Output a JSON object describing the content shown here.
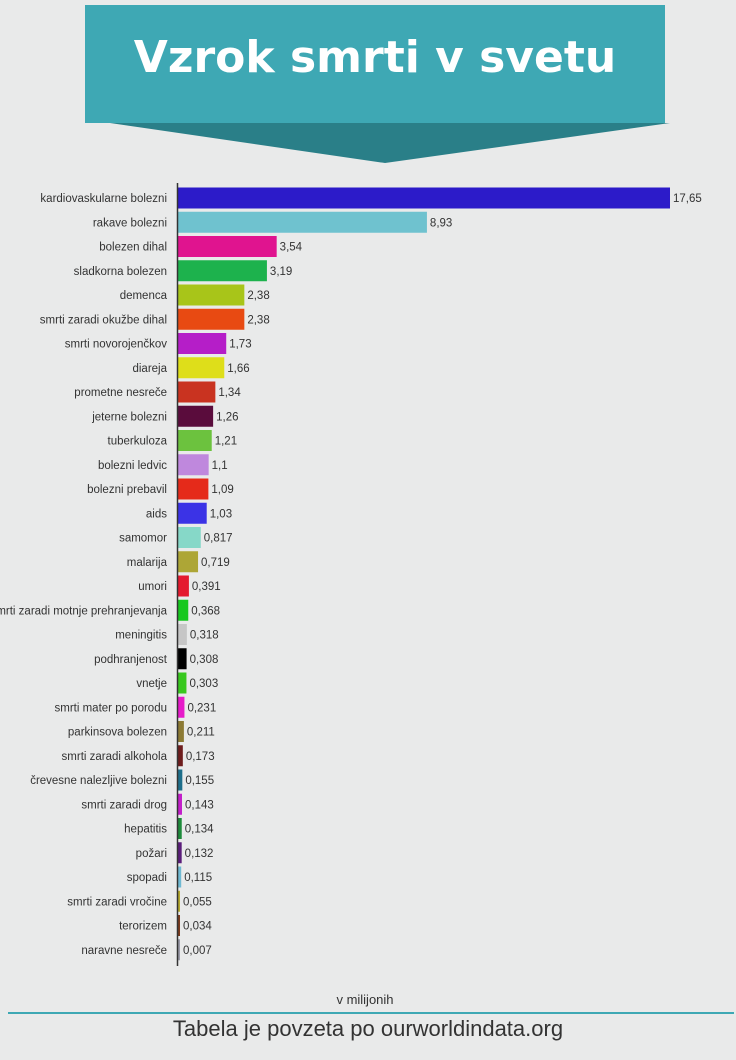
{
  "title": "Vzrok smrti v svetu",
  "unit_label": "v milijonih",
  "source": "Tabela je povzeta po ourworldindata.org",
  "colors": {
    "background": "#e9eaea",
    "banner": "#3ea8b4",
    "banner_shadow": "#2a7f88",
    "axis": "#333333"
  },
  "chart_data": {
    "type": "bar",
    "orientation": "horizontal",
    "xlim": [
      0,
      17.65
    ],
    "categories": [
      "kardiovaskularne bolezni",
      "rakave bolezni",
      "bolezen dihal",
      "sladkorna bolezen",
      "demenca",
      "smrti zaradi okužbe dihal",
      "smrti novorojenčkov",
      "diareja",
      "prometne nesreče",
      "jeterne bolezni",
      "tuberkuloza",
      "bolezni ledvic",
      "bolezni prebavil",
      "aids",
      "samomor",
      "malarija",
      "umori",
      "smrti zaradi motnje prehranjevanja",
      "meningitis",
      "podhranjenost",
      "vnetje",
      "smrti mater po porodu",
      "parkinsova bolezen",
      "smrti zaradi alkohola",
      "črevesne nalezljive bolezni",
      "smrti zaradi drog",
      "hepatitis",
      "požari",
      "spopadi",
      "smrti zaradi vročine",
      "terorizem",
      "naravne nesreče"
    ],
    "values": [
      17.65,
      8.93,
      3.54,
      3.19,
      2.38,
      2.38,
      1.73,
      1.66,
      1.34,
      1.26,
      1.21,
      1.1,
      1.09,
      1.03,
      0.817,
      0.719,
      0.391,
      0.368,
      0.318,
      0.308,
      0.303,
      0.231,
      0.211,
      0.173,
      0.155,
      0.143,
      0.134,
      0.132,
      0.115,
      0.055,
      0.034,
      0.007
    ],
    "value_labels": [
      "17,65",
      "8,93",
      "3,54",
      "3,19",
      "2,38",
      "2,38",
      "1,73",
      "1,66",
      "1,34",
      "1,26",
      "1,21",
      "1,1",
      "1,09",
      "1,03",
      "0,817",
      "0,719",
      "0,391",
      "0,368",
      "0,318",
      "0,308",
      "0,303",
      "0,231",
      "0,211",
      "0,173",
      "0,155",
      "0,143",
      "0,134",
      "0,132",
      "0,115",
      "0,055",
      "0,034",
      "0,007"
    ],
    "bar_colors": [
      "#2c1bc9",
      "#6fc2cf",
      "#e0148f",
      "#1db24d",
      "#a8c519",
      "#e84a12",
      "#b51ec8",
      "#dede1a",
      "#c93320",
      "#5a0c3c",
      "#6cc23e",
      "#bf88dd",
      "#e52a1a",
      "#3b33e6",
      "#86d8c8",
      "#ada636",
      "#e41a2e",
      "#17c81f",
      "#c6c6c6",
      "#000000",
      "#38c81e",
      "#e61ac9",
      "#8c7a34",
      "#6e1d1d",
      "#1d6e8a",
      "#c21ec9",
      "#1d8a3a",
      "#5a1d7a",
      "#6fb9d2",
      "#b5a92e",
      "#7a3a1d",
      "#9a9aa8"
    ],
    "grid": false,
    "legend": "none"
  }
}
